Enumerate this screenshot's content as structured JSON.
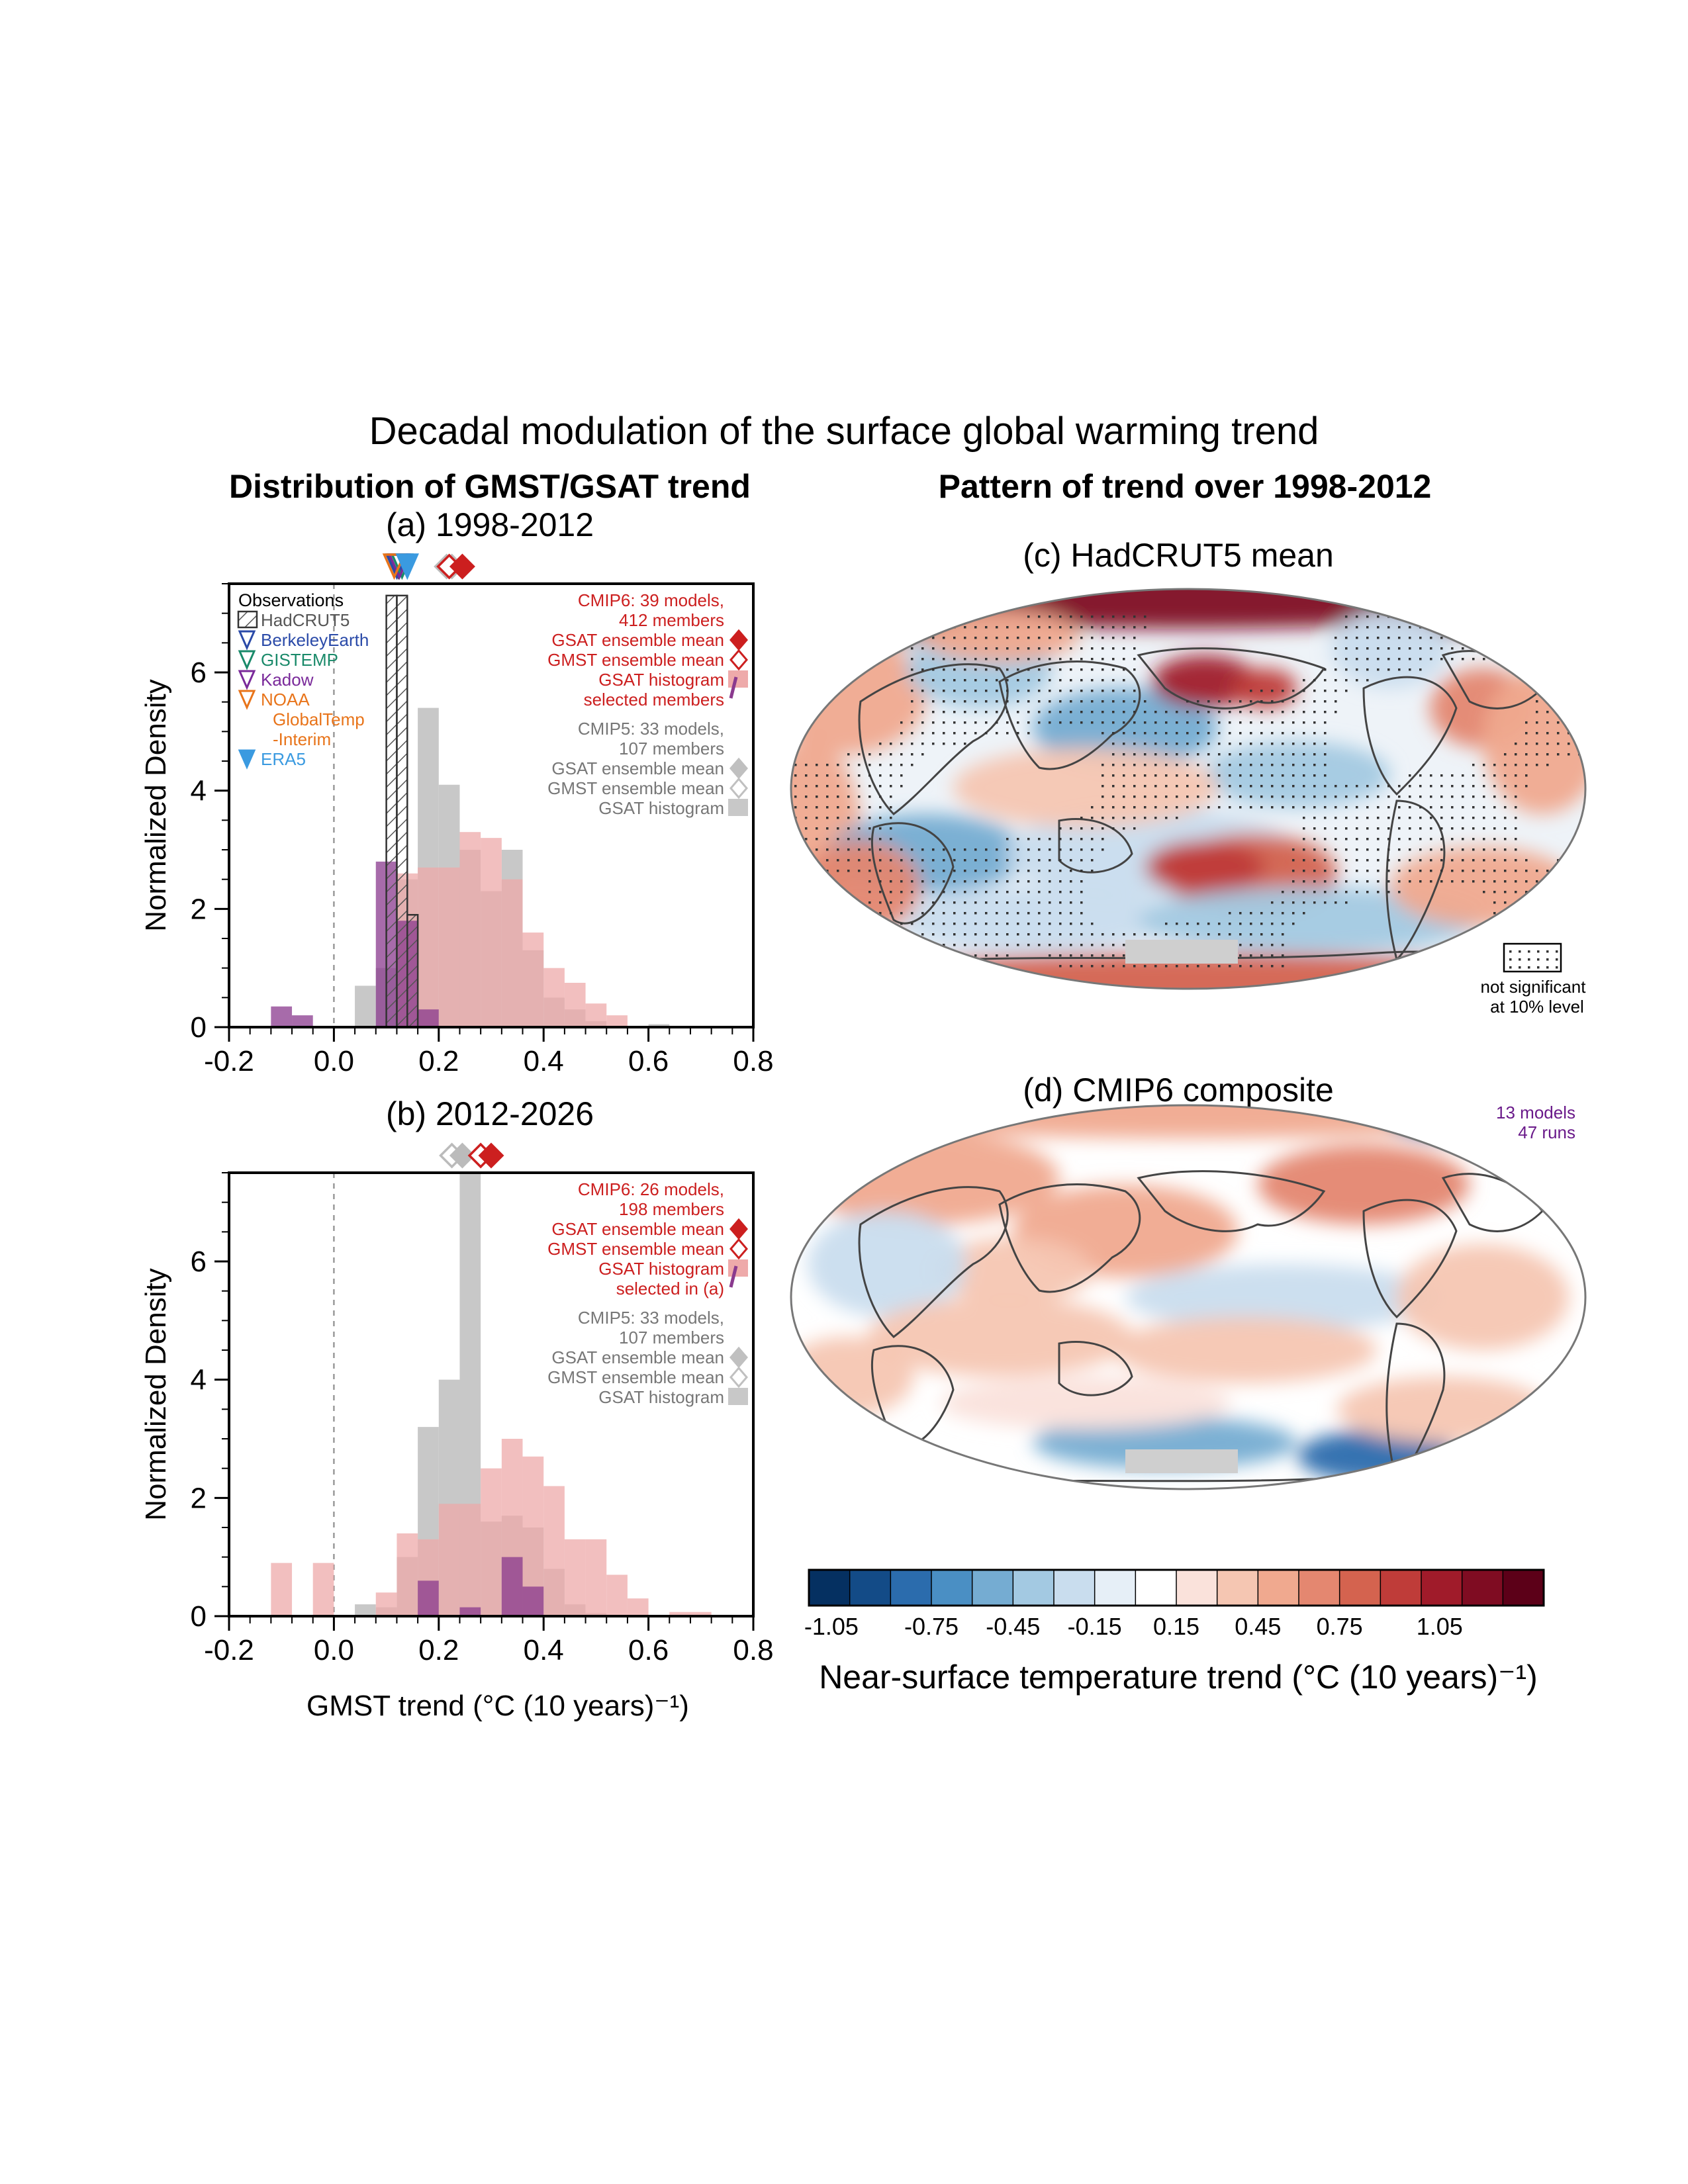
{
  "title": "Decadal modulation of the surface global warming trend",
  "left_heading": "Distribution of GMST/GSAT trend",
  "right_heading": "Pattern of trend over 1998-2012",
  "colors": {
    "cmip6": "#cc1f1f",
    "cmip6_hist": "#eeaaaa",
    "cmip5": "#777777",
    "cmip5_hist": "#c8c8c8",
    "selected": "#8a3a8e",
    "hadcrut": "#555555",
    "berkeley": "#2a4aa8",
    "gistemp": "#1a8a6a",
    "kadow": "#7a2a9a",
    "noaa": "#e8741a",
    "era5": "#3a9ae0",
    "composite_info": "#6a1a8a"
  },
  "chart_data": [
    {
      "id": "a",
      "type": "bar",
      "title": "(a) 1998-2012",
      "xlabel": "",
      "ylabel": "Normalized Density",
      "xlim": [
        -0.2,
        0.8
      ],
      "ylim": [
        0,
        7.5
      ],
      "xticks": [
        "-0.2",
        "0.0",
        "0.2",
        "0.4",
        "0.6",
        "0.8"
      ],
      "yticks": [
        "0",
        "2",
        "4",
        "6"
      ],
      "bin_width": 0.04,
      "series": [
        {
          "kind": "cmip5_hist",
          "bins": [
            [
              0.04,
              0.7
            ],
            [
              0.08,
              1.0
            ],
            [
              0.12,
              2.5
            ],
            [
              0.16,
              5.4
            ],
            [
              0.2,
              4.1
            ],
            [
              0.24,
              3.0
            ],
            [
              0.28,
              2.3
            ],
            [
              0.32,
              3.0
            ],
            [
              0.36,
              1.3
            ],
            [
              0.4,
              0.5
            ],
            [
              0.44,
              0.3
            ],
            [
              0.48,
              0.1
            ],
            [
              0.6,
              0.05
            ]
          ]
        },
        {
          "kind": "cmip6_hist",
          "bins": [
            [
              0.12,
              2.6
            ],
            [
              0.16,
              2.7
            ],
            [
              0.2,
              2.7
            ],
            [
              0.24,
              3.3
            ],
            [
              0.28,
              3.2
            ],
            [
              0.32,
              2.5
            ],
            [
              0.36,
              1.6
            ],
            [
              0.4,
              1.0
            ],
            [
              0.44,
              0.75
            ],
            [
              0.48,
              0.4
            ],
            [
              0.52,
              0.2
            ]
          ]
        },
        {
          "kind": "selected_hist",
          "bins": [
            [
              -0.12,
              0.35
            ],
            [
              -0.08,
              0.2
            ],
            [
              0.08,
              2.8
            ],
            [
              0.12,
              1.8
            ],
            [
              0.16,
              0.3
            ]
          ]
        }
      ],
      "hadcrut_bins": [
        [
          0.1,
          7.3
        ],
        [
          0.12,
          7.3
        ],
        [
          0.14,
          1.9
        ]
      ],
      "observations": [
        {
          "name": "HadCRUT5",
          "value": 0.123,
          "style": "open",
          "color": "#555555"
        },
        {
          "name": "BerkeleyEarth",
          "value": 0.12,
          "style": "open",
          "color": "#2a4aa8"
        },
        {
          "name": "GISTEMP",
          "value": 0.13,
          "style": "open",
          "color": "#1a8a6a"
        },
        {
          "name": "Kadow",
          "value": 0.125,
          "style": "open",
          "color": "#7a2a9a"
        },
        {
          "name": "NOAA GlobalTemp -Interim",
          "value": 0.115,
          "style": "open",
          "color": "#e8741a"
        },
        {
          "name": "ERA5",
          "value": 0.14,
          "style": "filled",
          "color": "#3a9ae0"
        }
      ],
      "ensemble_means": [
        {
          "name": "CMIP5 GMST",
          "value": 0.215,
          "style": "open",
          "color": "#bbbbbb"
        },
        {
          "name": "CMIP5 GSAT",
          "value": 0.225,
          "style": "filled",
          "color": "#bbbbbb"
        },
        {
          "name": "CMIP6 GMST",
          "value": 0.22,
          "style": "open",
          "color": "#cc1f1f"
        },
        {
          "name": "CMIP6 GSAT",
          "value": 0.245,
          "style": "filled",
          "color": "#cc1f1f"
        }
      ],
      "legend_text": {
        "obs_title": "Observations",
        "obs": [
          {
            "text": "HadCRUT5",
            "color": "#555555",
            "marker": "hatch"
          },
          {
            "text": "BerkeleyEarth",
            "color": "#2a4aa8",
            "marker": "tri-open"
          },
          {
            "text": "GISTEMP",
            "color": "#1a8a6a",
            "marker": "tri-open"
          },
          {
            "text": "Kadow",
            "color": "#7a2a9a",
            "marker": "tri-open"
          },
          {
            "text": "NOAA",
            "color": "#e8741a",
            "marker": "tri-open"
          },
          {
            "text": "GlobalTemp",
            "color": "#e8741a",
            "marker": "none"
          },
          {
            "text": "-Interim",
            "color": "#e8741a",
            "marker": "none"
          },
          {
            "text": "ERA5",
            "color": "#3a9ae0",
            "marker": "tri-filled"
          }
        ],
        "right": [
          {
            "text": "CMIP6: 39 models,",
            "color": "#cc1f1f",
            "marker": "none"
          },
          {
            "text": "412 members",
            "color": "#cc1f1f",
            "marker": "none"
          },
          {
            "text": "GSAT ensemble mean",
            "color": "#cc1f1f",
            "marker": "dia-filled"
          },
          {
            "text": "GMST ensemble mean",
            "color": "#cc1f1f",
            "marker": "dia-open"
          },
          {
            "text": "GSAT histogram",
            "color": "#cc1f1f",
            "marker": "hist-sel"
          },
          {
            "text": "selected members",
            "color": "#cc1f1f",
            "marker": "none"
          },
          {
            "text": "",
            "color": "#777777",
            "marker": "gap"
          },
          {
            "text": "CMIP5: 33 models,",
            "color": "#777777",
            "marker": "none"
          },
          {
            "text": "107 members",
            "color": "#777777",
            "marker": "none"
          },
          {
            "text": "GSAT ensemble mean",
            "color": "#777777",
            "marker": "dia-filled-grey"
          },
          {
            "text": "GMST ensemble mean",
            "color": "#777777",
            "marker": "dia-open-grey"
          },
          {
            "text": "GSAT histogram",
            "color": "#777777",
            "marker": "hist-grey"
          }
        ]
      }
    },
    {
      "id": "b",
      "type": "bar",
      "title": "(b) 2012-2026",
      "xlabel": "GMST trend (°C (10 years)⁻¹)",
      "ylabel": "Normalized Density",
      "xlim": [
        -0.2,
        0.8
      ],
      "ylim": [
        0,
        7.5
      ],
      "xticks": [
        "-0.2",
        "0.0",
        "0.2",
        "0.4",
        "0.6",
        "0.8"
      ],
      "yticks": [
        "0",
        "2",
        "4",
        "6"
      ],
      "bin_width": 0.04,
      "series": [
        {
          "kind": "cmip5_hist",
          "bins": [
            [
              0.04,
              0.2
            ],
            [
              0.08,
              0.15
            ],
            [
              0.12,
              1.0
            ],
            [
              0.16,
              3.2
            ],
            [
              0.2,
              4.0
            ],
            [
              0.24,
              7.5
            ],
            [
              0.28,
              1.6
            ],
            [
              0.32,
              1.7
            ],
            [
              0.36,
              1.5
            ],
            [
              0.4,
              0.8
            ],
            [
              0.44,
              0.2
            ],
            [
              0.48,
              0.05
            ]
          ]
        },
        {
          "kind": "cmip6_hist",
          "bins": [
            [
              -0.12,
              0.9
            ],
            [
              -0.04,
              0.9
            ],
            [
              0.08,
              0.4
            ],
            [
              0.12,
              1.4
            ],
            [
              0.16,
              1.3
            ],
            [
              0.2,
              1.9
            ],
            [
              0.24,
              1.9
            ],
            [
              0.28,
              2.5
            ],
            [
              0.32,
              3.0
            ],
            [
              0.36,
              2.7
            ],
            [
              0.4,
              2.2
            ],
            [
              0.44,
              1.3
            ],
            [
              0.48,
              1.3
            ],
            [
              0.52,
              0.7
            ],
            [
              0.56,
              0.3
            ],
            [
              0.64,
              0.07
            ],
            [
              0.68,
              0.07
            ]
          ]
        },
        {
          "kind": "selected_hist",
          "bins": [
            [
              0.16,
              0.6
            ],
            [
              0.24,
              0.15
            ],
            [
              0.32,
              1.0
            ],
            [
              0.36,
              0.5
            ]
          ]
        }
      ],
      "hadcrut_bins": [],
      "observations": [],
      "ensemble_means": [
        {
          "name": "CMIP5 GMST",
          "value": 0.225,
          "style": "open",
          "color": "#bbbbbb"
        },
        {
          "name": "CMIP5 GSAT",
          "value": 0.245,
          "style": "filled",
          "color": "#bbbbbb"
        },
        {
          "name": "CMIP6 GMST",
          "value": 0.28,
          "style": "open",
          "color": "#cc1f1f"
        },
        {
          "name": "CMIP6 GSAT",
          "value": 0.3,
          "style": "filled",
          "color": "#cc1f1f"
        }
      ],
      "legend_text": {
        "obs_title": "",
        "obs": [],
        "right": [
          {
            "text": "CMIP6: 26 models,",
            "color": "#cc1f1f",
            "marker": "none"
          },
          {
            "text": "198 members",
            "color": "#cc1f1f",
            "marker": "none"
          },
          {
            "text": "GSAT ensemble mean",
            "color": "#cc1f1f",
            "marker": "dia-filled"
          },
          {
            "text": "GMST ensemble mean",
            "color": "#cc1f1f",
            "marker": "dia-open"
          },
          {
            "text": "GSAT histogram",
            "color": "#cc1f1f",
            "marker": "hist-sel"
          },
          {
            "text": "selected in (a)",
            "color": "#cc1f1f",
            "marker": "none"
          },
          {
            "text": "",
            "color": "#777777",
            "marker": "gap"
          },
          {
            "text": "CMIP5: 33 models,",
            "color": "#777777",
            "marker": "none"
          },
          {
            "text": "107 members",
            "color": "#777777",
            "marker": "none"
          },
          {
            "text": "GSAT ensemble mean",
            "color": "#777777",
            "marker": "dia-filled-grey"
          },
          {
            "text": "GMST ensemble mean",
            "color": "#777777",
            "marker": "dia-open-grey"
          },
          {
            "text": "GSAT histogram",
            "color": "#777777",
            "marker": "hist-grey"
          }
        ]
      }
    },
    {
      "id": "c",
      "type": "heatmap",
      "title": "(c) HadCRUT5 mean",
      "stipple_legend": [
        "not significant",
        "at 10% level"
      ]
    },
    {
      "id": "d",
      "type": "heatmap",
      "title": "(d) CMIP6 composite",
      "note": [
        "13 models",
        "47 runs"
      ]
    }
  ],
  "colorbar": {
    "colors": [
      "#053061",
      "#134b87",
      "#2b6cad",
      "#4a8fc4",
      "#75acd2",
      "#a3c9e2",
      "#c9ddee",
      "#e6eff7",
      "#ffffff",
      "#fae2db",
      "#f5c6b2",
      "#f0a98f",
      "#e48770",
      "#d4634f",
      "#bf3c39",
      "#a01b2a",
      "#7f0c22",
      "#5c0018"
    ],
    "labels": [
      "-1.05",
      "-0.75",
      "-0.45",
      "-0.15",
      "0.15",
      "0.45",
      "0.75",
      "1.05"
    ],
    "label": "Near-surface temperature trend (°C (10 years)⁻¹)"
  }
}
